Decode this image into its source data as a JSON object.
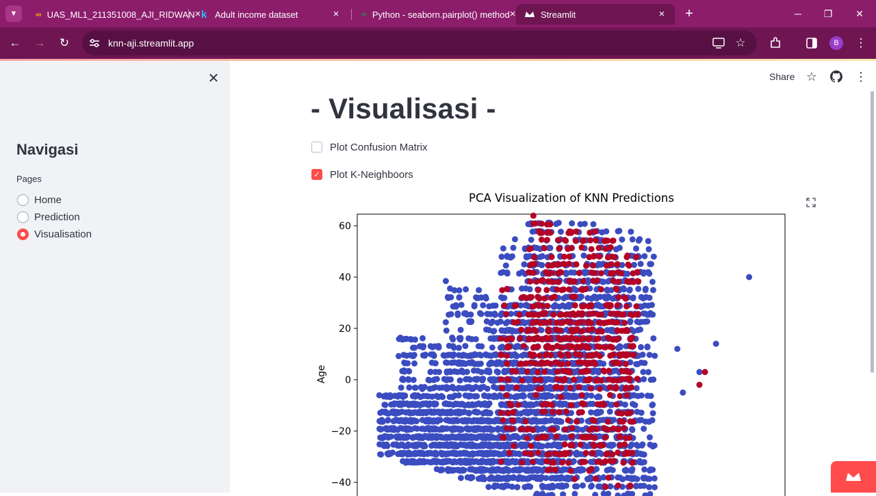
{
  "browser": {
    "tabs": [
      {
        "title": "UAS_ML1_211351008_AJI_RIDWAN",
        "favicon": "colab-icon",
        "active": false
      },
      {
        "title": "Adult income dataset",
        "favicon": "kaggle-icon",
        "active": false
      },
      {
        "title": "Python - seaborn.pairplot() method",
        "favicon": "geeksforgeeks-icon",
        "active": false
      },
      {
        "title": "Streamlit",
        "favicon": "streamlit-crown-icon",
        "active": true
      }
    ],
    "url": "knn-aji.streamlit.app",
    "profile_initial": "B"
  },
  "sidebar": {
    "title": "Navigasi",
    "pages_label": "Pages",
    "pages": [
      {
        "label": "Home",
        "selected": false
      },
      {
        "label": "Prediction",
        "selected": false
      },
      {
        "label": "Visualisation",
        "selected": true
      }
    ]
  },
  "header": {
    "share_label": "Share"
  },
  "main": {
    "title": "- Visualisasi -",
    "checkboxes": [
      {
        "label": "Plot Confusion Matrix",
        "checked": false
      },
      {
        "label": "Plot K-Neighboors",
        "checked": true
      }
    ]
  },
  "colors": {
    "accent": "#ff4b4b",
    "browser_frame": "#8c1d6b",
    "class_0": "#3b4cc0",
    "class_1": "#b40426"
  },
  "chart_data": {
    "type": "scatter",
    "title": "PCA Visualization of KNN Predictions",
    "ylabel": "Age",
    "xlabel": "",
    "ylim": [
      -40,
      67
    ],
    "xlim": [
      -60,
      95
    ],
    "yticks": [
      60,
      40,
      20,
      0,
      -20,
      -40
    ],
    "series": [
      {
        "color": "#3b4cc0",
        "bands": [
          {
            "y_top": 62,
            "y_bottom": -40,
            "x_min": 2,
            "x_max": 48
          },
          {
            "y_top": 48,
            "y_bottom": -40,
            "x_min": -8,
            "x_max": 40
          },
          {
            "y_top": 30,
            "y_bottom": -40,
            "x_min": -28,
            "x_max": 28
          },
          {
            "y_top": 10,
            "y_bottom": -40,
            "x_min": -45,
            "x_max": 15
          },
          {
            "y_top": -10,
            "y_bottom": -35,
            "x_min": -52,
            "x_max": -5
          }
        ],
        "outliers": [
          [
            82,
            40
          ],
          [
            56,
            12
          ],
          [
            70,
            14
          ],
          [
            64,
            3
          ],
          [
            58,
            -5
          ]
        ]
      },
      {
        "color": "#b40426",
        "bands": [
          {
            "y_top": 58,
            "y_bottom": 0,
            "x_min": 2,
            "x_max": 42
          },
          {
            "y_top": 30,
            "y_bottom": -38,
            "x_min": -8,
            "x_max": 40
          }
        ],
        "outliers": [
          [
            66,
            3
          ],
          [
            64,
            -2
          ]
        ]
      }
    ]
  }
}
